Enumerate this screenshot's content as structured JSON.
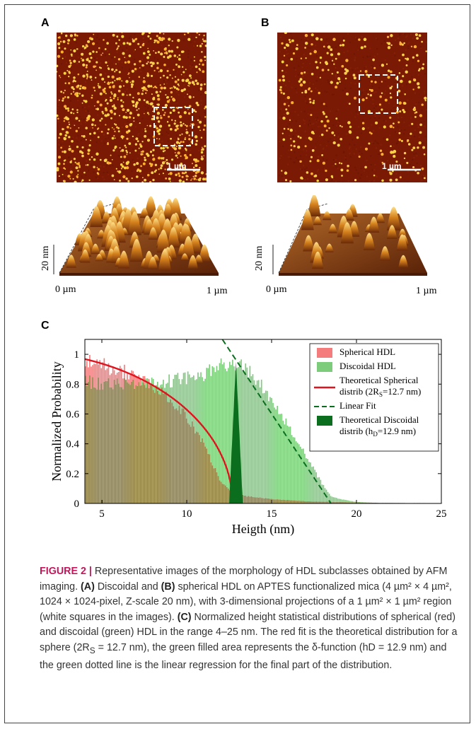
{
  "panels": {
    "a": {
      "label": "A",
      "scale_bar": "1 µm",
      "z_label": "20 nm",
      "x_start": "0 µm",
      "x_end": "1 µm"
    },
    "b": {
      "label": "B",
      "scale_bar": "1 µm",
      "z_label": "20 nm",
      "x_start": "0 µm",
      "x_end": "1 µm"
    },
    "c": {
      "label": "C"
    }
  },
  "colors": {
    "afm_bg": "#7a1a05",
    "afm_dot": "#ffd24a",
    "spherical": "#f47c7c",
    "discoidal": "#7ccc7c",
    "overlap": "#8a7a3a",
    "fit_red": "#e0141e",
    "fit_green": "#0a6e1e"
  },
  "chart_data": {
    "type": "bar",
    "xlabel": "Heigth (nm)",
    "ylabel": "Normalized Probability",
    "xlim": [
      4,
      25
    ],
    "ylim": [
      0,
      1.1
    ],
    "x_ticks": [
      5,
      10,
      15,
      20,
      25
    ],
    "y_ticks": [
      0,
      0.2,
      0.4,
      0.6,
      0.8,
      1
    ],
    "legend_position": "top-right",
    "legend": [
      {
        "label": "Spherical HDL",
        "kind": "patch",
        "color": "#f47c7c"
      },
      {
        "label": "Discoidal HDL",
        "kind": "patch",
        "color": "#7ccc7c"
      },
      {
        "label": "Theoretical Spherical",
        "label2": "distrib (2R",
        "sub": "S",
        "label3": "=12.7 nm)",
        "kind": "line",
        "color": "#e0141e"
      },
      {
        "label": "Linear Fit",
        "kind": "dash",
        "color": "#0a6e1e"
      },
      {
        "label": "Theoretical Discoidal",
        "label2": "distrib (h",
        "sub": "D",
        "label3": "=12.9 nm)",
        "kind": "patch",
        "color": "#0a6e1e"
      }
    ],
    "series": [
      {
        "name": "Spherical HDL",
        "x": [
          4,
          5,
          6,
          7,
          8,
          9,
          10,
          11,
          12,
          12.7,
          13.5,
          15,
          17,
          19,
          21,
          23,
          25
        ],
        "values": [
          0.97,
          0.93,
          0.9,
          0.86,
          0.8,
          0.7,
          0.58,
          0.4,
          0.15,
          0.07,
          0.05,
          0.03,
          0.015,
          0.01,
          0.005,
          0.003,
          0.002
        ]
      },
      {
        "name": "Discoidal HDL",
        "x": [
          4,
          5,
          6,
          7,
          8,
          9,
          10,
          11,
          12,
          13,
          14,
          15,
          16,
          17,
          18,
          18.5,
          19,
          20,
          21,
          22,
          23,
          25
        ],
        "values": [
          0.82,
          0.8,
          0.8,
          0.79,
          0.8,
          0.82,
          0.84,
          0.87,
          0.92,
          0.95,
          0.85,
          0.7,
          0.52,
          0.33,
          0.13,
          0.05,
          0.03,
          0.01,
          0.005,
          0.002,
          0.002,
          0.001
        ]
      },
      {
        "name": "Theoretical Spherical distrib (2RS=12.7 nm)",
        "kind": "curve",
        "radius_nm": 12.7,
        "amplitude": 1.02
      },
      {
        "name": "Linear Fit",
        "kind": "line",
        "x": [
          12.1,
          18.5
        ],
        "values": [
          1.1,
          0
        ]
      },
      {
        "name": "Theoretical Discoidal distrib (hD=12.9 nm)",
        "kind": "spike",
        "x": [
          12.5,
          12.9,
          13.3
        ],
        "values": [
          0,
          0.95,
          0
        ]
      }
    ]
  },
  "caption": {
    "figure_label": "FIGURE 2 |",
    "text1": " Representative images of the morphology of HDL subclasses obtained by AFM imaging. ",
    "bold_a": "(A)",
    "text2": " Discoidal and ",
    "bold_b": "(B)",
    "text3": " spherical HDL on APTES functionalized mica (4 µm² × 4 µm², 1024 × 1024-pixel, Z-scale 20 nm), with 3-dimensional projections of a 1 µm² × 1 µm² region (white squares in the images). ",
    "bold_c": "(C)",
    "text4": " Normalized height statistical distributions of spherical (red) and discoidal (green) HDL in the range 4–25 nm. The red fit is the theoretical distribution for a sphere (2R",
    "sub_s": "S",
    "text5": " = 12.7 nm), the green filled area represents the δ-function (hD = 12.9 nm) and the green dotted line is the linear regression for the final part of the distribution."
  }
}
